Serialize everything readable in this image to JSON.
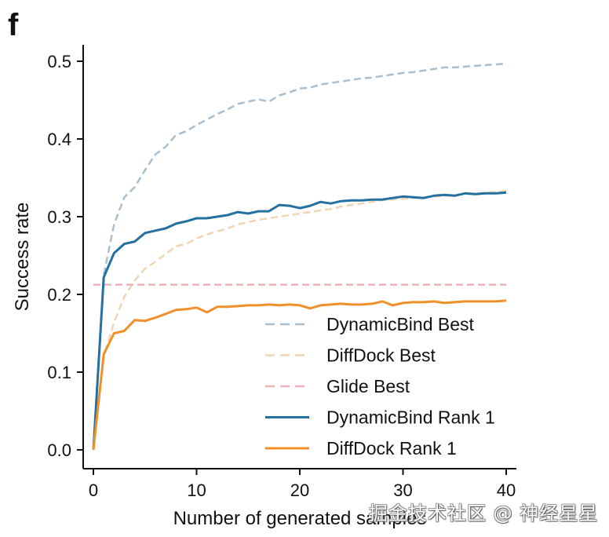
{
  "panel_label": "f",
  "watermark": "掘金技术社区 @ 神经星星",
  "chart_data": {
    "type": "line",
    "title": "",
    "xlabel": "Number of generated samples",
    "ylabel": "Success rate",
    "xlim": [
      0,
      40
    ],
    "ylim": [
      0,
      0.5
    ],
    "xticks": [
      0,
      10,
      20,
      30,
      40
    ],
    "xtick_labels": [
      "0",
      "10",
      "20",
      "30",
      "40"
    ],
    "yticks": [
      0.0,
      0.1,
      0.2,
      0.3,
      0.4,
      0.5
    ],
    "ytick_labels": [
      "0.0",
      "0.1",
      "0.2",
      "0.3",
      "0.4",
      "0.5"
    ],
    "grid": false,
    "legend_position": "bottom-right",
    "x": [
      0,
      1,
      2,
      3,
      4,
      5,
      6,
      7,
      8,
      9,
      10,
      11,
      12,
      13,
      14,
      15,
      16,
      17,
      18,
      19,
      20,
      21,
      22,
      23,
      24,
      25,
      26,
      27,
      28,
      29,
      30,
      31,
      32,
      33,
      34,
      35,
      36,
      37,
      38,
      39,
      40
    ],
    "series": [
      {
        "name": "DynamicBind Best",
        "color": "#a9bfcf",
        "style": "dashed",
        "values": [
          0.0,
          0.225,
          0.29,
          0.325,
          0.338,
          0.36,
          0.38,
          0.39,
          0.405,
          0.41,
          0.418,
          0.425,
          0.432,
          0.438,
          0.445,
          0.448,
          0.451,
          0.448,
          0.456,
          0.46,
          0.465,
          0.466,
          0.47,
          0.472,
          0.474,
          0.476,
          0.478,
          0.479,
          0.481,
          0.483,
          0.485,
          0.486,
          0.488,
          0.49,
          0.492,
          0.492,
          0.493,
          0.494,
          0.495,
          0.496,
          0.497
        ]
      },
      {
        "name": "DiffDock Best",
        "color": "#f0d5b4",
        "style": "dashed",
        "values": [
          0.0,
          0.12,
          0.164,
          0.197,
          0.218,
          0.233,
          0.242,
          0.252,
          0.262,
          0.265,
          0.272,
          0.277,
          0.281,
          0.285,
          0.29,
          0.293,
          0.296,
          0.298,
          0.3,
          0.302,
          0.304,
          0.306,
          0.308,
          0.31,
          0.313,
          0.315,
          0.317,
          0.319,
          0.321,
          0.322,
          0.323,
          0.324,
          0.325,
          0.326,
          0.327,
          0.328,
          0.329,
          0.33,
          0.331,
          0.332,
          0.333
        ]
      },
      {
        "name": "Glide Best",
        "color": "#eeb3b8",
        "style": "dashed",
        "values": [
          0.2125,
          0.2125,
          0.2125,
          0.2125,
          0.2125,
          0.2125,
          0.2125,
          0.2125,
          0.2125,
          0.2125,
          0.2125,
          0.2125,
          0.2125,
          0.2125,
          0.2125,
          0.2125,
          0.2125,
          0.2125,
          0.2125,
          0.2125,
          0.2125,
          0.2125,
          0.2125,
          0.2125,
          0.2125,
          0.2125,
          0.2125,
          0.2125,
          0.2125,
          0.2125,
          0.2125,
          0.2125,
          0.2125,
          0.2125,
          0.2125,
          0.2125,
          0.2125,
          0.2125,
          0.2125,
          0.2125,
          0.2125
        ]
      },
      {
        "name": "DynamicBind Rank 1",
        "color": "#2470a0",
        "style": "solid",
        "values": [
          0.0,
          0.222,
          0.253,
          0.265,
          0.268,
          0.279,
          0.282,
          0.285,
          0.291,
          0.294,
          0.298,
          0.298,
          0.3,
          0.302,
          0.306,
          0.304,
          0.307,
          0.307,
          0.315,
          0.314,
          0.311,
          0.314,
          0.319,
          0.317,
          0.32,
          0.321,
          0.321,
          0.322,
          0.322,
          0.324,
          0.326,
          0.325,
          0.324,
          0.327,
          0.328,
          0.327,
          0.33,
          0.329,
          0.33,
          0.33,
          0.331
        ]
      },
      {
        "name": "DiffDock Rank 1",
        "color": "#f0902a",
        "style": "solid",
        "values": [
          0.0,
          0.123,
          0.15,
          0.153,
          0.167,
          0.166,
          0.17,
          0.175,
          0.18,
          0.181,
          0.183,
          0.177,
          0.184,
          0.184,
          0.185,
          0.186,
          0.186,
          0.187,
          0.186,
          0.187,
          0.186,
          0.182,
          0.186,
          0.187,
          0.188,
          0.187,
          0.187,
          0.188,
          0.191,
          0.186,
          0.189,
          0.19,
          0.19,
          0.191,
          0.189,
          0.19,
          0.191,
          0.191,
          0.191,
          0.191,
          0.192
        ]
      }
    ]
  }
}
